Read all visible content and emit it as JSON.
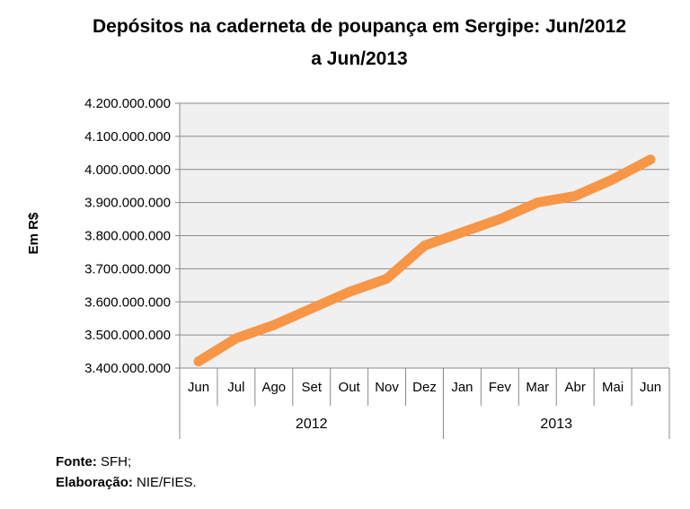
{
  "title": "Depósitos na caderneta de poupança em Sergipe: Jun/2012 a Jun/2013",
  "y_axis_title": "Em R$",
  "footer": {
    "fonte_label": "Fonte:",
    "fonte_value": " SFH;",
    "elaboracao_label": "Elaboração:",
    "elaboracao_value": " NIE/FIES."
  },
  "colors": {
    "line": "#F79646",
    "plot_bg": "#F0F0F0",
    "gridline": "#8A8A8A",
    "axis": "#8A8A8A",
    "text": "#000000"
  },
  "chart_data": {
    "type": "line",
    "title": "Depósitos na caderneta de poupança em Sergipe: Jun/2012 a Jun/2013",
    "ylabel": "Em R$",
    "x": [
      "Jun",
      "Jul",
      "Ago",
      "Set",
      "Out",
      "Nov",
      "Dez",
      "Jan",
      "Fev",
      "Mar",
      "Abr",
      "Mai",
      "Jun"
    ],
    "year_groups": [
      {
        "label": "2012",
        "span": 7
      },
      {
        "label": "2013",
        "span": 6
      }
    ],
    "series": [
      {
        "name": "Depósitos na caderneta de poupança",
        "values": [
          3420000000,
          3490000000,
          3530000000,
          3580000000,
          3630000000,
          3670000000,
          3770000000,
          3810000000,
          3850000000,
          3900000000,
          3920000000,
          3970000000,
          4030000000
        ]
      }
    ],
    "ylim": [
      3400000000,
      4200000000
    ],
    "ytick_step": 100000000,
    "ytick_labels": [
      "3.400.000.000",
      "3.500.000.000",
      "3.600.000.000",
      "3.700.000.000",
      "3.800.000.000",
      "3.900.000.000",
      "4.000.000.000",
      "4.100.000.000",
      "4.200.000.000"
    ],
    "grid": true,
    "legend": "none"
  }
}
